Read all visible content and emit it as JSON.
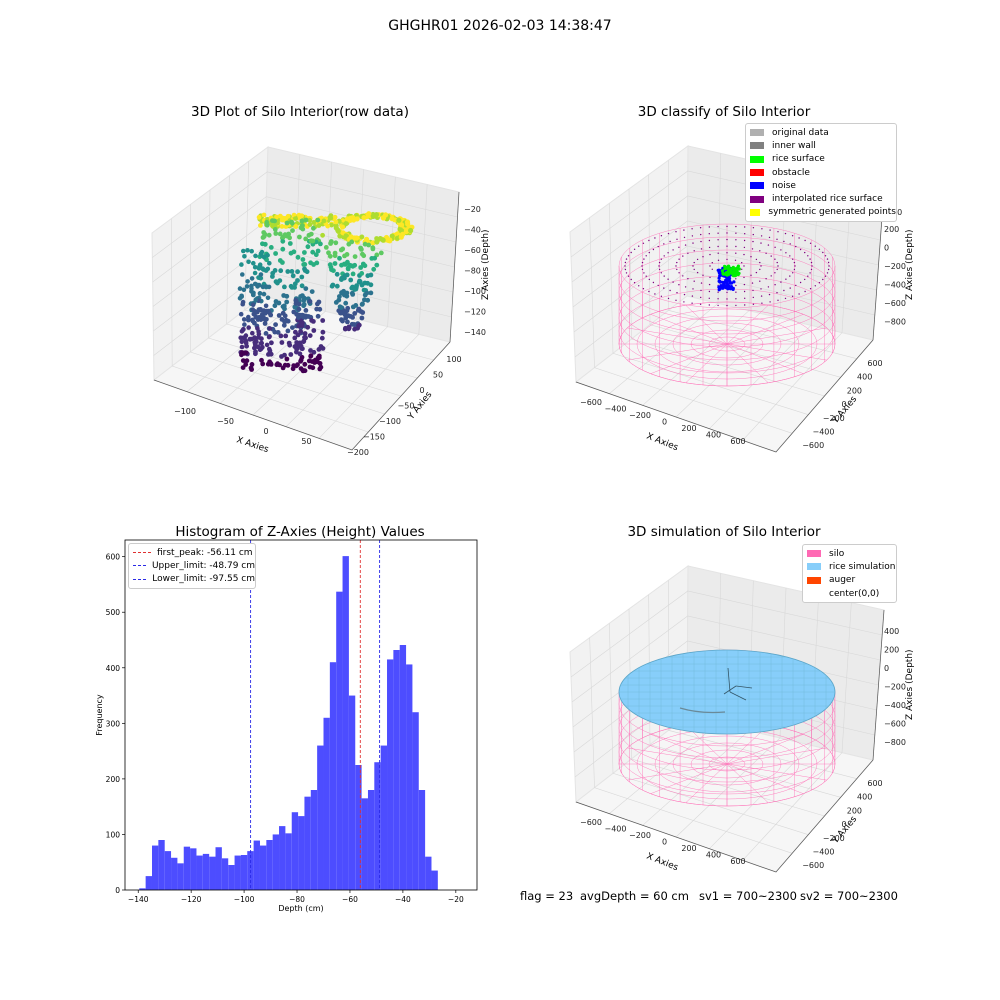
{
  "suptitle": "GHGHR01 2026-02-03 14:38:47",
  "colors": {
    "hist_bar": "#4d4dff",
    "first_peak": "#e03030",
    "limits": "#2a2ae6",
    "silo": "#ff69b4",
    "rice": "#87cefa",
    "auger": "#ff4500"
  },
  "panel1": {
    "title": "3D Plot of Silo Interior(row data)",
    "xlabel": "X Axies",
    "ylabel": "Y Axies",
    "zlabel": "Z Axies (Depth)",
    "xticks": [
      "−100",
      "−50",
      "0",
      "50"
    ],
    "yticks": [
      "100",
      "50",
      "0",
      "−50",
      "−100",
      "−150",
      "−200"
    ],
    "zticks": [
      "−20",
      "−40",
      "−60",
      "−80",
      "−100",
      "−120",
      "−140"
    ]
  },
  "panel2": {
    "title": "3D classify of Silo Interior",
    "xlabel": "X Axies",
    "ylabel": "Y Axies",
    "zlabel": "Z Axies (Depth)",
    "xticks": [
      "−600",
      "−400",
      "−200",
      "0",
      "200",
      "400",
      "600"
    ],
    "yticks": [
      "600",
      "400",
      "200",
      "0",
      "−200",
      "−400",
      "−600"
    ],
    "zticks": [
      "200",
      "0",
      "−200",
      "−400",
      "−600",
      "−800"
    ],
    "zticks_partial": "00",
    "legend": [
      {
        "label": "original data",
        "color": "#b0b0b0"
      },
      {
        "label": "inner wall",
        "color": "#808080"
      },
      {
        "label": "rice surface",
        "color": "#00ff00"
      },
      {
        "label": "obstacle",
        "color": "#ff0000"
      },
      {
        "label": "noise",
        "color": "#0000ff"
      },
      {
        "label": "interpolated rice surface",
        "color": "#800080"
      },
      {
        "label": "symmetric generated points",
        "color": "#ffff00"
      }
    ]
  },
  "panel4": {
    "title": "3D simulation of Silo Interior",
    "xlabel": "X Axies",
    "ylabel": "Y Axies",
    "zlabel": "Z Axies (Depth)",
    "xticks": [
      "−600",
      "−400",
      "−200",
      "0",
      "200",
      "400",
      "600"
    ],
    "yticks": [
      "600",
      "400",
      "200",
      "0",
      "−200",
      "−400",
      "−600"
    ],
    "zticks": [
      "400",
      "200",
      "0",
      "−200",
      "−400",
      "−600",
      "−800"
    ],
    "legend": [
      {
        "label": "silo",
        "color": "#ff69b4"
      },
      {
        "label": "rice simulation",
        "color": "#87cefa"
      },
      {
        "label": "auger",
        "color": "#ff4500"
      },
      {
        "label": "center(0,0)",
        "color": "#ffffff"
      }
    ]
  },
  "footer": {
    "flag": "flag = 23",
    "avg": "avgDepth = 60 cm",
    "sv1": "sv1 = 700~2300",
    "sv2": "sv2 = 700~2300"
  },
  "chart_data": [
    {
      "type": "scatter",
      "title": "3D Plot of Silo Interior(row data)",
      "xlabel": "X Axies",
      "ylabel": "Y Axies",
      "zlabel": "Z Axies (Depth)",
      "xlim": [
        -140,
        80
      ],
      "ylim": [
        -200,
        110
      ],
      "zlim": [
        -145,
        -15
      ]
    },
    {
      "type": "scatter",
      "title": "3D classify of Silo Interior",
      "xlabel": "X Axies",
      "ylabel": "Y Axies",
      "zlabel": "Z Axies (Depth)",
      "xlim": [
        -700,
        700
      ],
      "ylim": [
        -700,
        700
      ],
      "zlim": [
        -900,
        300
      ]
    },
    {
      "type": "bar",
      "title": "Histogram of Z-Axies (Height) Values",
      "xlabel": "Depth (cm)",
      "ylabel": "Frequency",
      "xlim": [
        -145,
        -12
      ],
      "ylim": [
        0,
        630
      ],
      "xticks": [
        -140,
        -120,
        -100,
        -80,
        -60,
        -40,
        -20
      ],
      "yticks": [
        0,
        100,
        200,
        300,
        400,
        500,
        600
      ],
      "bin_start": -139.6,
      "bin_width": 2.4,
      "values": [
        3,
        25,
        80,
        90,
        70,
        58,
        48,
        78,
        75,
        62,
        65,
        60,
        77,
        57,
        45,
        62,
        63,
        70,
        89,
        80,
        90,
        100,
        115,
        102,
        140,
        133,
        168,
        180,
        260,
        310,
        410,
        537,
        601,
        350,
        225,
        165,
        180,
        230,
        260,
        415,
        432,
        441,
        406,
        320,
        180,
        60,
        35
      ],
      "vlines": [
        {
          "label": "first_peak: -56.11 cm",
          "x": -56.11,
          "color": "#e03030"
        },
        {
          "label": "Upper_limit: -48.79 cm",
          "x": -48.79,
          "color": "#2a2ae6"
        },
        {
          "label": "Lower_limit: -97.55 cm",
          "x": -97.55,
          "color": "#2a2ae6"
        }
      ]
    },
    {
      "type": "surface",
      "title": "3D simulation of Silo Interior",
      "xlabel": "X Axies",
      "ylabel": "Y Axies",
      "zlabel": "Z Axies (Depth)",
      "xlim": [
        -700,
        700
      ],
      "ylim": [
        -700,
        700
      ],
      "zlim": [
        -900,
        450
      ]
    }
  ]
}
